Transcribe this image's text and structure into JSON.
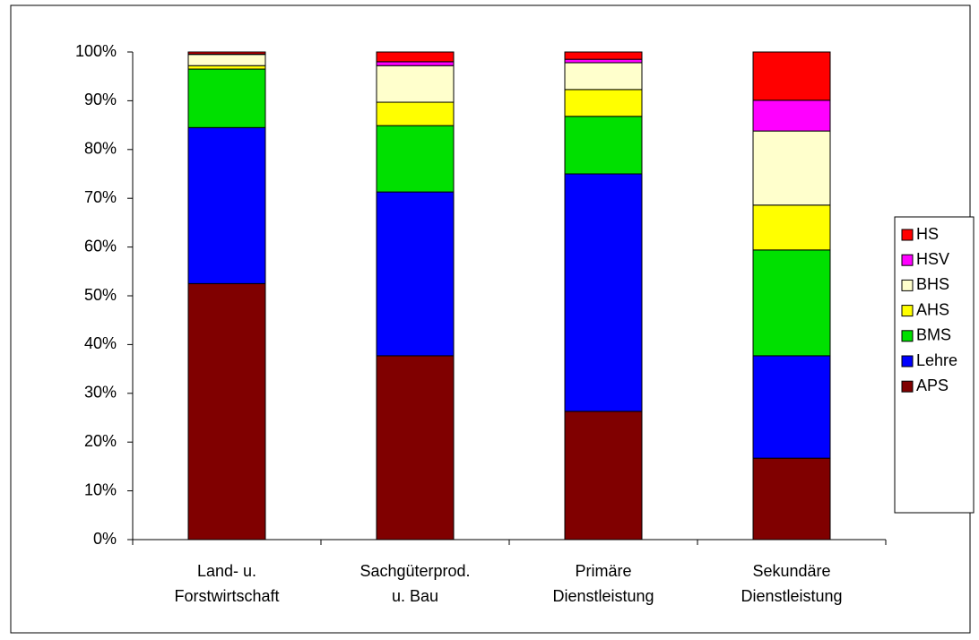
{
  "chart_data": {
    "type": "stacked_bar",
    "categories": [
      [
        "Land- u.",
        "Forstwirtschaft"
      ],
      [
        "Sachgüterprod.",
        "u. Bau"
      ],
      [
        "Primäre",
        "Dienstleistung"
      ],
      [
        "Sekundäre",
        "Dienstleistung"
      ]
    ],
    "series": [
      {
        "name": "APS",
        "color": "#800000",
        "values": [
          52.5,
          37.7,
          26.3,
          16.7
        ]
      },
      {
        "name": "Lehre",
        "color": "#0000ff",
        "values": [
          32,
          33.6,
          48.7,
          21
        ]
      },
      {
        "name": "BMS",
        "color": "#00e000",
        "values": [
          12,
          13.6,
          11.8,
          21.7
        ]
      },
      {
        "name": "AHS",
        "color": "#ffff00",
        "values": [
          0.7,
          4.8,
          5.5,
          9.2
        ]
      },
      {
        "name": "BHS",
        "color": "#ffffcc",
        "values": [
          2.3,
          7.5,
          5.5,
          15.2
        ]
      },
      {
        "name": "HSV",
        "color": "#ff00ff",
        "values": [
          0.1,
          0.8,
          0.7,
          6.3
        ]
      },
      {
        "name": "HS",
        "color": "#ff0000",
        "values": [
          0.4,
          2.0,
          1.5,
          9.9
        ]
      }
    ],
    "ylim": [
      0,
      100
    ],
    "yticks": [
      {
        "value": 0,
        "label": "0%"
      },
      {
        "value": 10,
        "label": "10%"
      },
      {
        "value": 20,
        "label": "20%"
      },
      {
        "value": 30,
        "label": "30%"
      },
      {
        "value": 40,
        "label": "40%"
      },
      {
        "value": 50,
        "label": "50%"
      },
      {
        "value": 60,
        "label": "60%"
      },
      {
        "value": 70,
        "label": "70%"
      },
      {
        "value": 80,
        "label": "80%"
      },
      {
        "value": 90,
        "label": "90%"
      },
      {
        "value": 100,
        "label": "100%"
      }
    ],
    "legend": "right"
  }
}
